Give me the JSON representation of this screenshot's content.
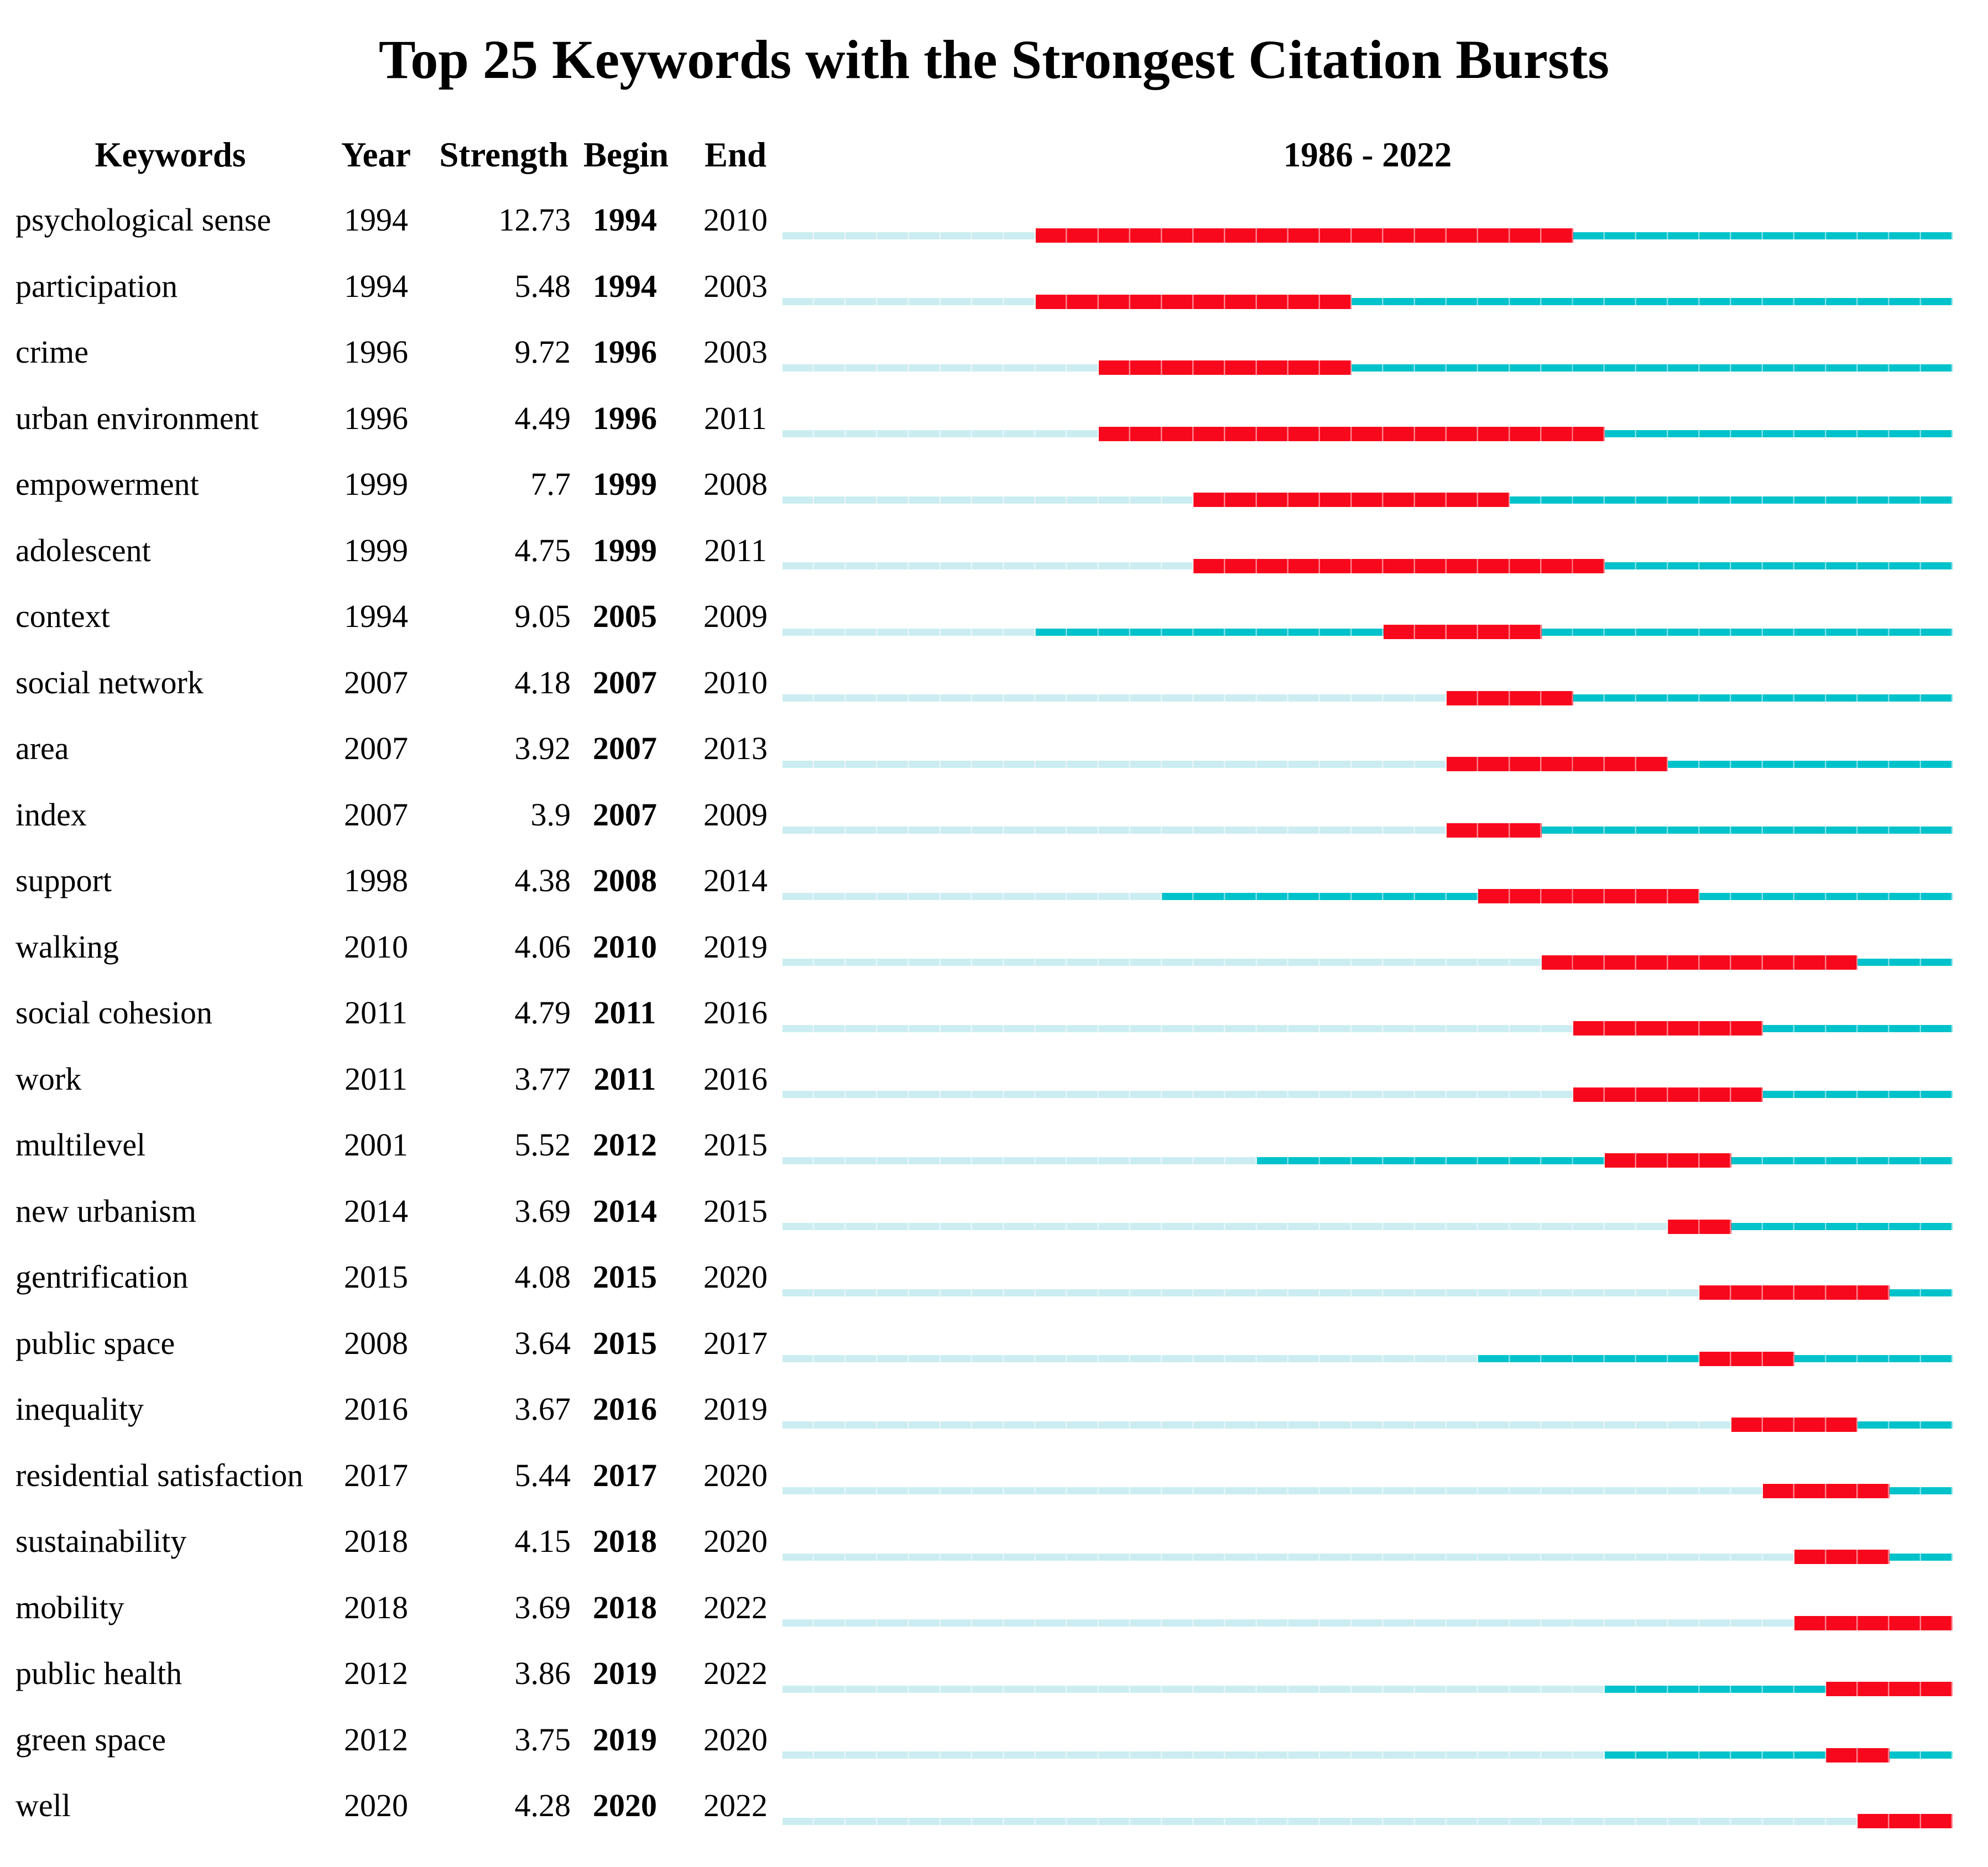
{
  "title": "Top 25 Keywords with the Strongest Citation Bursts",
  "columns": {
    "keywords": "Keywords",
    "year": "Year",
    "strength": "Strength",
    "begin": "Begin",
    "end": "End",
    "timeline": "1986 - 2022"
  },
  "colors": {
    "burst": "#F8081C",
    "active": "#00C2CB",
    "inactive": "#CBEDF1"
  },
  "chart_data": {
    "type": "table",
    "title": "Top 25 Keywords with the Strongest Citation Bursts",
    "columns": [
      "Keywords",
      "Year",
      "Strength",
      "Begin",
      "End"
    ],
    "timeline": {
      "label": "1986 - 2022",
      "min_year": 1986,
      "max_year": 2022,
      "bar_encoding": {
        "inactive_segment": "from 1986 until keyword first appearance year (pale blue)",
        "active_segment": "from appearance year to burst begin and after burst end to 2022 (teal)",
        "burst_segment": "from Begin year through End year inclusive (red, thicker)"
      }
    },
    "rows": [
      {
        "keyword": "psychological sense",
        "year": "1994",
        "strength": "12.73",
        "begin": "1994",
        "end": "2010"
      },
      {
        "keyword": "participation",
        "year": "1994",
        "strength": "5.48",
        "begin": "1994",
        "end": "2003"
      },
      {
        "keyword": "crime",
        "year": "1996",
        "strength": "9.72",
        "begin": "1996",
        "end": "2003"
      },
      {
        "keyword": "urban environment",
        "year": "1996",
        "strength": "4.49",
        "begin": "1996",
        "end": "2011"
      },
      {
        "keyword": "empowerment",
        "year": "1999",
        "strength": "7.7",
        "begin": "1999",
        "end": "2008"
      },
      {
        "keyword": "adolescent",
        "year": "1999",
        "strength": "4.75",
        "begin": "1999",
        "end": "2011"
      },
      {
        "keyword": "context",
        "year": "1994",
        "strength": "9.05",
        "begin": "2005",
        "end": "2009"
      },
      {
        "keyword": "social network",
        "year": "2007",
        "strength": "4.18",
        "begin": "2007",
        "end": "2010"
      },
      {
        "keyword": "area",
        "year": "2007",
        "strength": "3.92",
        "begin": "2007",
        "end": "2013"
      },
      {
        "keyword": "index",
        "year": "2007",
        "strength": "3.9",
        "begin": "2007",
        "end": "2009"
      },
      {
        "keyword": "support",
        "year": "1998",
        "strength": "4.38",
        "begin": "2008",
        "end": "2014"
      },
      {
        "keyword": "walking",
        "year": "2010",
        "strength": "4.06",
        "begin": "2010",
        "end": "2019"
      },
      {
        "keyword": "social cohesion",
        "year": "2011",
        "strength": "4.79",
        "begin": "2011",
        "end": "2016"
      },
      {
        "keyword": "work",
        "year": "2011",
        "strength": "3.77",
        "begin": "2011",
        "end": "2016"
      },
      {
        "keyword": "multilevel",
        "year": "2001",
        "strength": "5.52",
        "begin": "2012",
        "end": "2015"
      },
      {
        "keyword": "new urbanism",
        "year": "2014",
        "strength": "3.69",
        "begin": "2014",
        "end": "2015"
      },
      {
        "keyword": "gentrification",
        "year": "2015",
        "strength": "4.08",
        "begin": "2015",
        "end": "2020"
      },
      {
        "keyword": "public space",
        "year": "2008",
        "strength": "3.64",
        "begin": "2015",
        "end": "2017"
      },
      {
        "keyword": "inequality",
        "year": "2016",
        "strength": "3.67",
        "begin": "2016",
        "end": "2019"
      },
      {
        "keyword": "residential satisfaction",
        "year": "2017",
        "strength": "5.44",
        "begin": "2017",
        "end": "2020"
      },
      {
        "keyword": "sustainability",
        "year": "2018",
        "strength": "4.15",
        "begin": "2018",
        "end": "2020"
      },
      {
        "keyword": "mobility",
        "year": "2018",
        "strength": "3.69",
        "begin": "2018",
        "end": "2022"
      },
      {
        "keyword": "public health",
        "year": "2012",
        "strength": "3.86",
        "begin": "2019",
        "end": "2022"
      },
      {
        "keyword": "green space",
        "year": "2012",
        "strength": "3.75",
        "begin": "2019",
        "end": "2020"
      },
      {
        "keyword": "well",
        "year": "2020",
        "strength": "4.28",
        "begin": "2020",
        "end": "2022"
      }
    ]
  }
}
